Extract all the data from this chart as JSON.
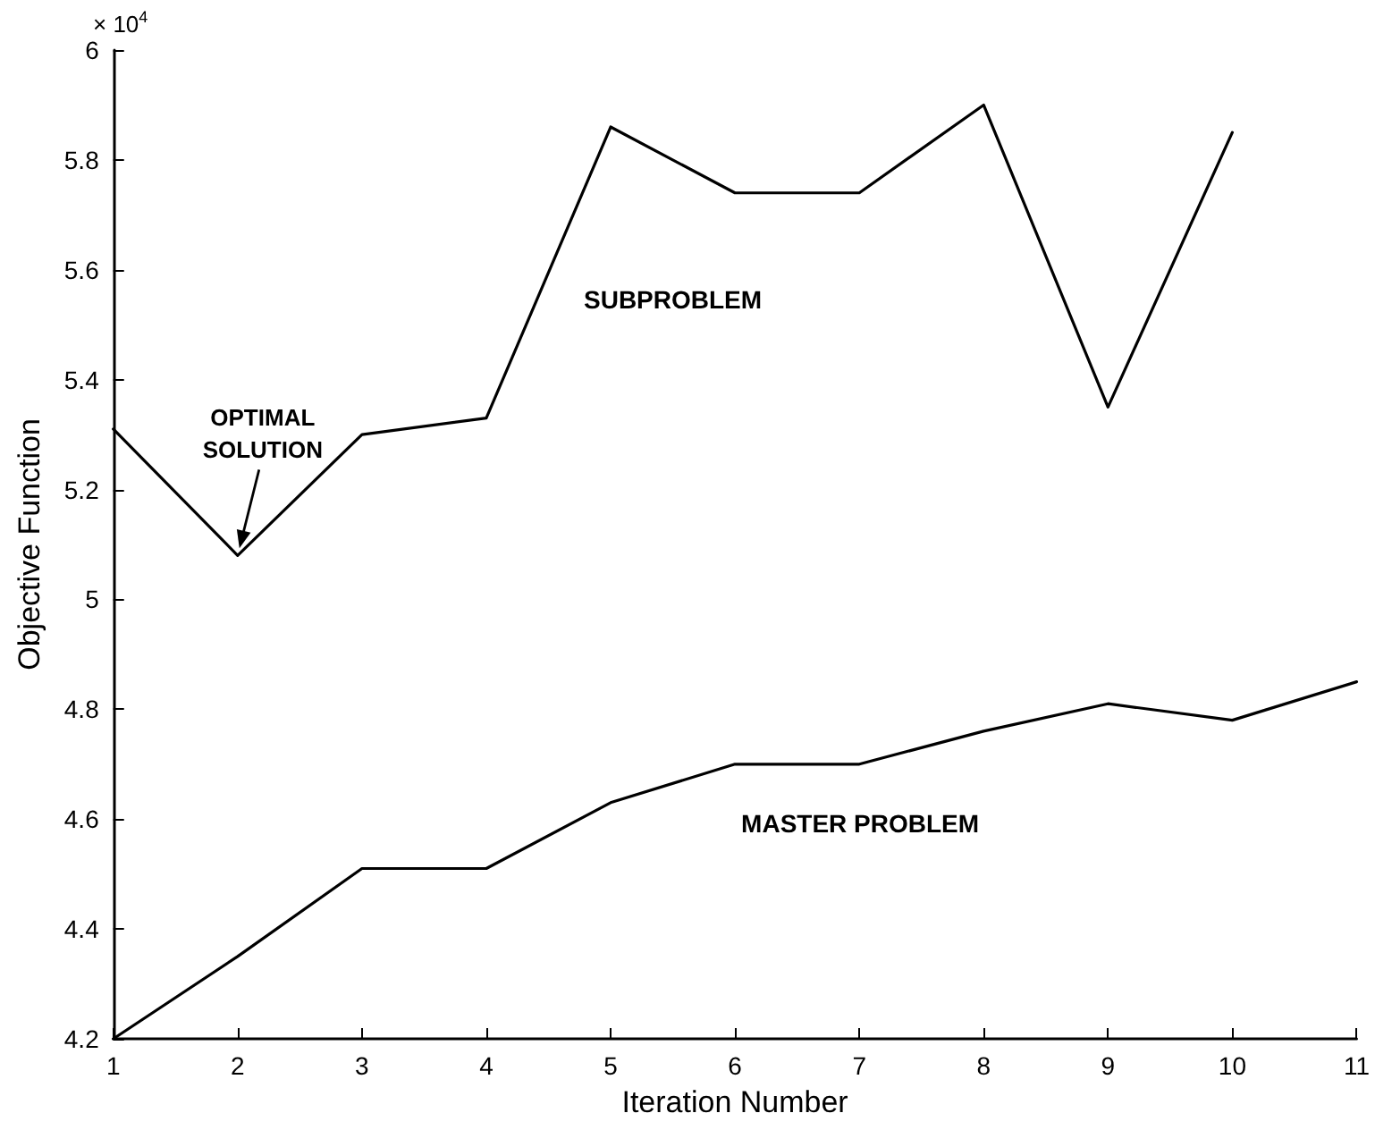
{
  "chart_data": {
    "type": "line",
    "xlabel": "Iteration Number",
    "ylabel": "Objective Function",
    "x": [
      1,
      2,
      3,
      4,
      5,
      6,
      7,
      8,
      9,
      10,
      11
    ],
    "series": [
      {
        "name": "SUBPROBLEM",
        "color": "#000000",
        "x": [
          1,
          2,
          3,
          4,
          5,
          6,
          7,
          8,
          9,
          10
        ],
        "values": [
          5.31,
          5.08,
          5.3,
          5.33,
          5.86,
          5.74,
          5.74,
          5.9,
          5.35,
          5.85
        ]
      },
      {
        "name": "MASTER PROBLEM",
        "color": "#000000",
        "values": [
          4.2,
          4.35,
          4.51,
          4.51,
          4.63,
          4.7,
          4.7,
          4.76,
          4.81,
          4.78,
          4.85
        ]
      }
    ],
    "xlim": [
      1,
      11
    ],
    "xticks": [
      1,
      2,
      3,
      4,
      5,
      6,
      7,
      8,
      9,
      10,
      11
    ],
    "ylim": [
      4.2,
      6
    ],
    "yticks": [
      4.2,
      4.4,
      4.6,
      4.8,
      5,
      5.2,
      5.4,
      5.6,
      5.8,
      6
    ],
    "annotations": [
      "× 10$^{4}$",
      {
        "text": "OPTIMAL SOLUTION",
        "x": 2,
        "y": 5.08
      }
    ],
    "grid": false,
    "legend": false,
    "marker": "none",
    "line_style": "solid"
  }
}
